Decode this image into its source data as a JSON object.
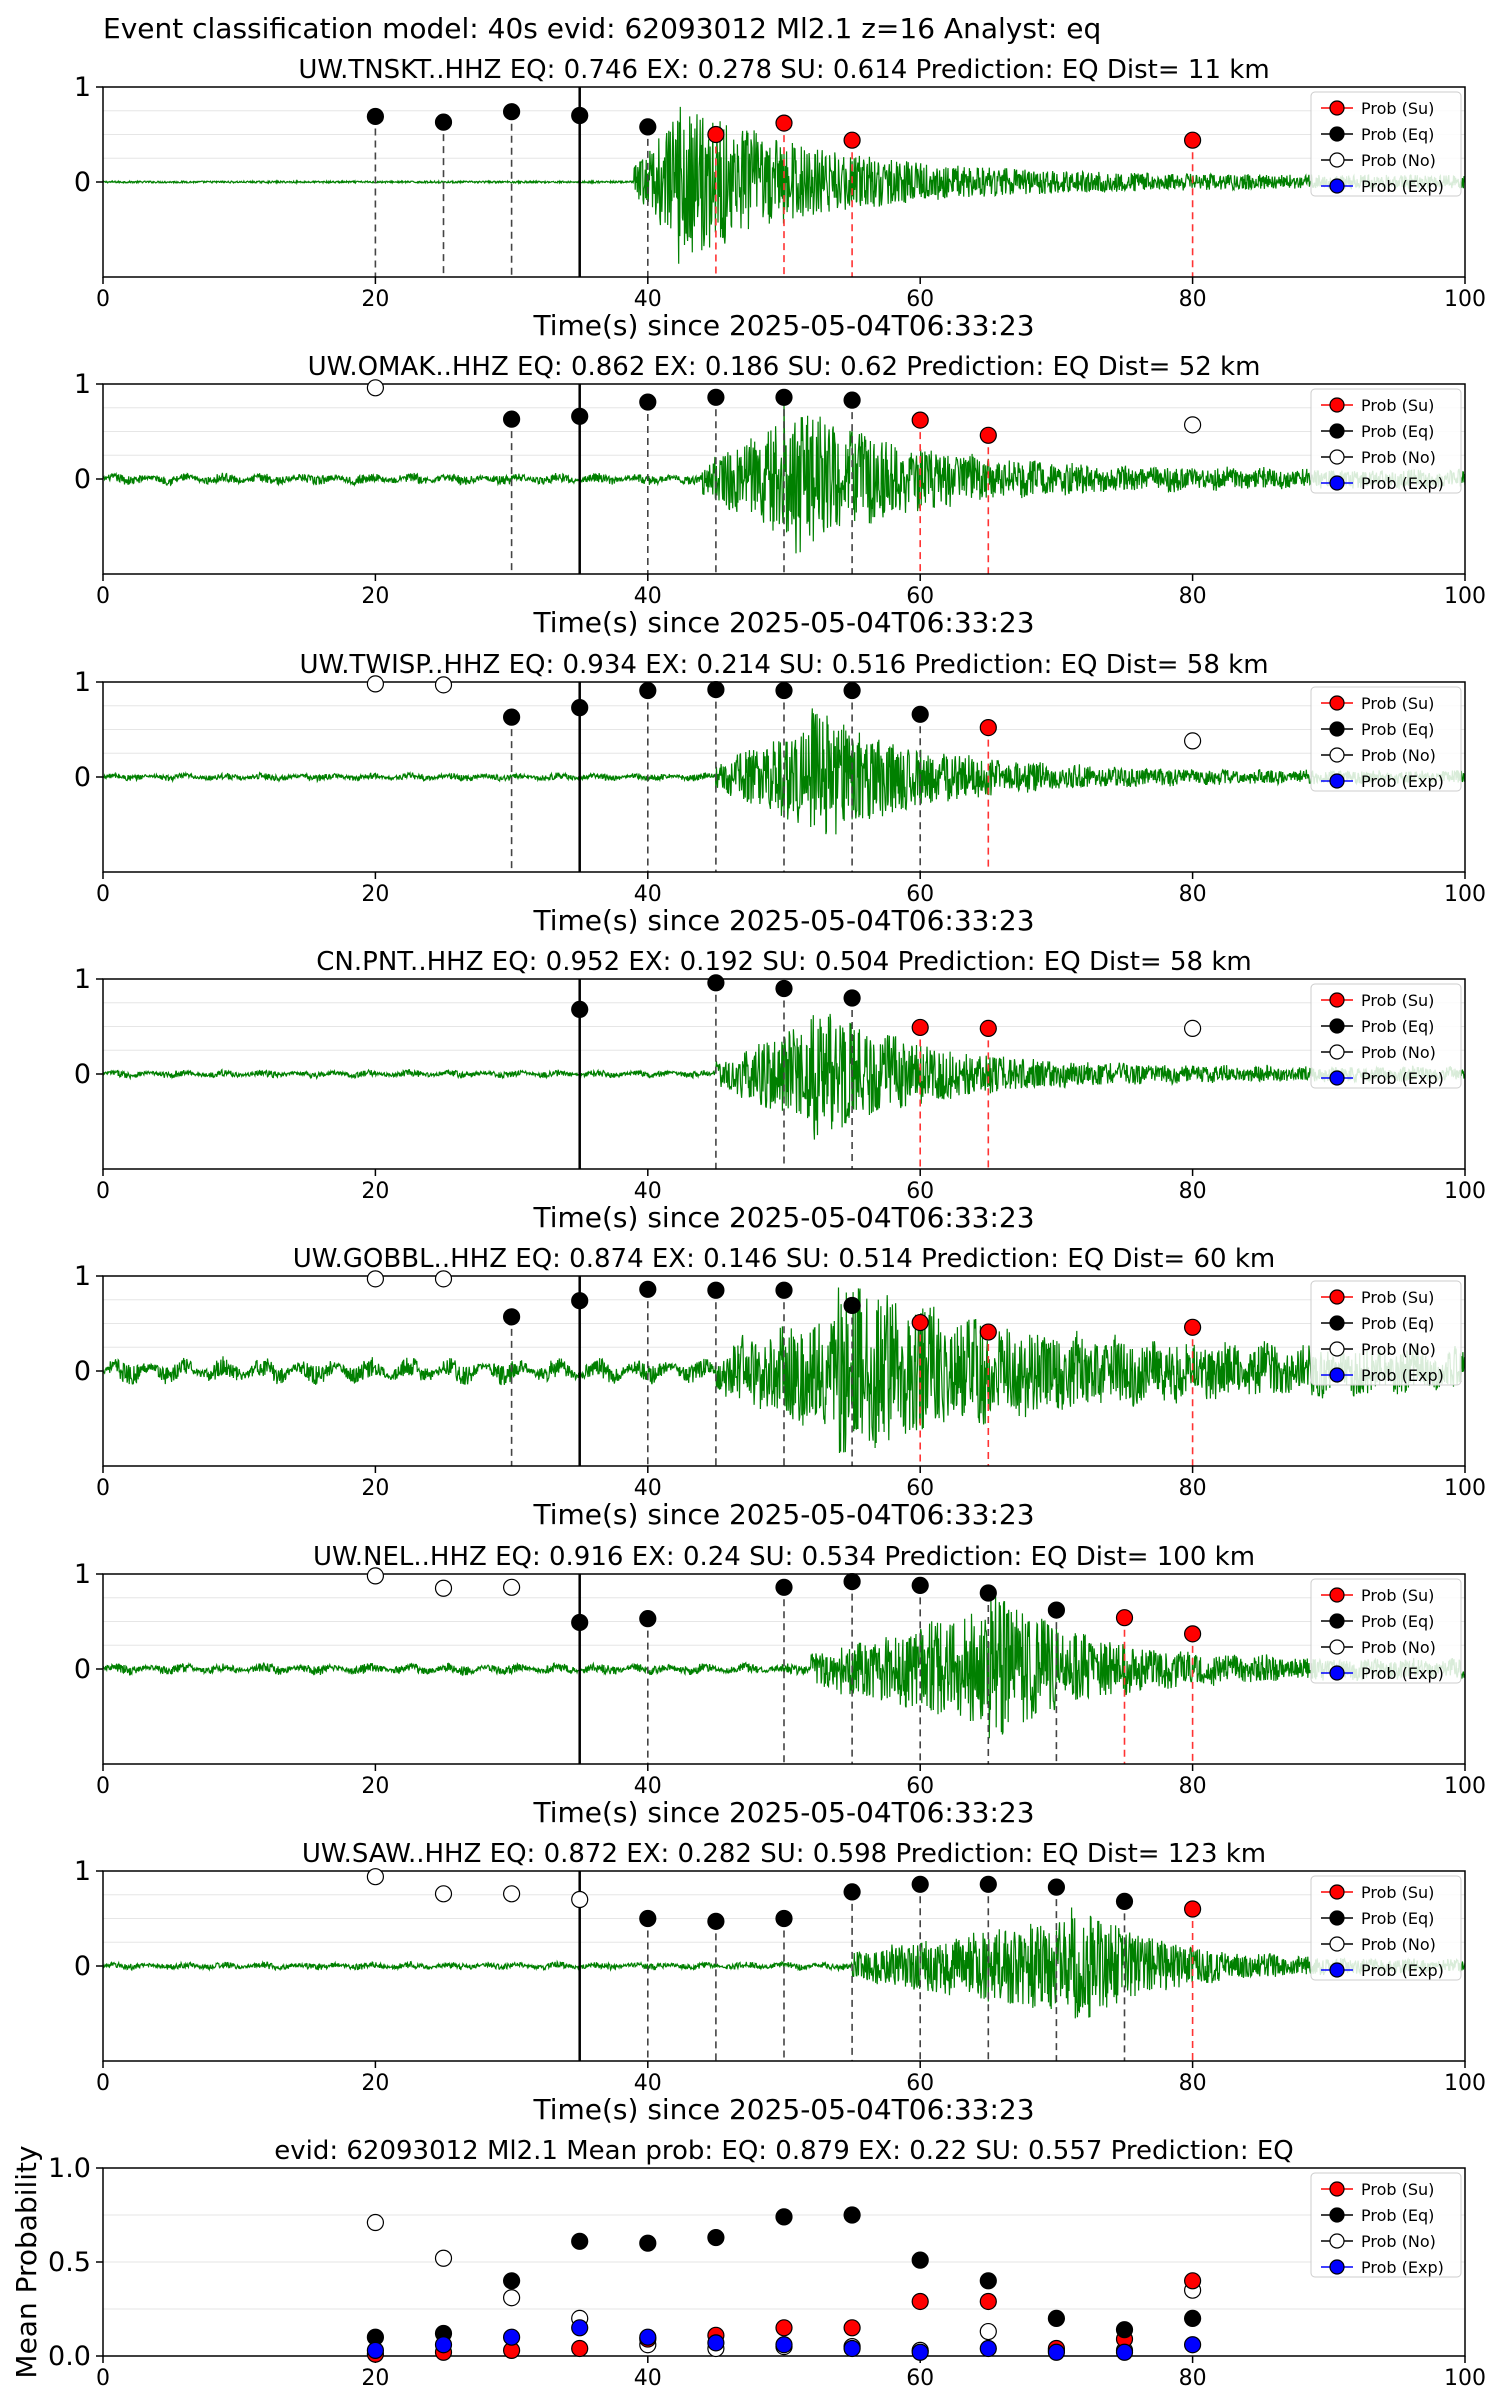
{
  "figure": {
    "suptitle": "Event classification model: 40s evid: 62093012 Ml2.1 z=16 Analyst: eq"
  },
  "legend_labels": [
    "Prob (Su)",
    "Prob (Eq)",
    "Prob (No)",
    "Prob (Exp)"
  ],
  "colors": {
    "su": "#ff0000",
    "eq": "#000000",
    "no": "#ffffff",
    "exp": "#0000ff",
    "waveform": "#008000",
    "eq_line": "#444444",
    "su_line": "#ff3333"
  },
  "chart_data": [
    {
      "type": "scatter",
      "title": "UW.TNSKT..HHZ   EQ: 0.746  EX: 0.278  SU: 0.614   Prediction: EQ    Dist= 11 km",
      "xlabel": "Time(s) since 2025-05-04T06:33:23",
      "ylabel": "",
      "xlim": [
        0,
        100
      ],
      "ylim": [
        -1,
        1
      ],
      "xticks": [
        0,
        20,
        40,
        60,
        80,
        100
      ],
      "yticks": [
        "1",
        "0"
      ],
      "arrival": 35,
      "waveform": {
        "onset": 39,
        "peak": 42,
        "amp": 1.0,
        "noise": 0.01,
        "swell": 0.0,
        "decay": 10,
        "tail": 0.06
      },
      "series": [
        {
          "name": "Prob (Su)",
          "x": [
            45,
            50,
            55,
            80
          ],
          "y": [
            0.5,
            0.62,
            0.44,
            0.44
          ]
        },
        {
          "name": "Prob (Eq)",
          "x": [
            20,
            25,
            30,
            35,
            40
          ],
          "y": [
            0.69,
            0.63,
            0.74,
            0.7,
            0.58
          ]
        },
        {
          "name": "Prob (No)",
          "x": [],
          "y": []
        },
        {
          "name": "Prob (Exp)",
          "x": [],
          "y": []
        }
      ]
    },
    {
      "type": "scatter",
      "title": "UW.OMAK..HHZ   EQ: 0.862  EX: 0.186  SU: 0.62   Prediction: EQ    Dist= 52 km",
      "xlabel": "Time(s) since 2025-05-04T06:33:23",
      "ylabel": "",
      "xlim": [
        0,
        100
      ],
      "ylim": [
        -1,
        1
      ],
      "xticks": [
        0,
        20,
        40,
        60,
        80,
        100
      ],
      "yticks": [
        "1",
        "0"
      ],
      "arrival": 35,
      "waveform": {
        "onset": 44,
        "peak": 50,
        "amp": 0.9,
        "noise": 0.02,
        "swell": 0.03,
        "decay": 9,
        "tail": 0.05
      },
      "series": [
        {
          "name": "Prob (Su)",
          "x": [
            60,
            65
          ],
          "y": [
            0.62,
            0.46
          ]
        },
        {
          "name": "Prob (Eq)",
          "x": [
            30,
            35,
            40,
            45,
            50,
            55
          ],
          "y": [
            0.63,
            0.66,
            0.81,
            0.86,
            0.86,
            0.83
          ]
        },
        {
          "name": "Prob (No)",
          "x": [
            20,
            80
          ],
          "y": [
            0.96,
            0.57
          ]
        },
        {
          "name": "Prob (Exp)",
          "x": [],
          "y": []
        }
      ]
    },
    {
      "type": "scatter",
      "title": "UW.TWISP..HHZ   EQ: 0.934  EX: 0.214  SU: 0.516   Prediction: EQ    Dist= 58 km",
      "xlabel": "Time(s) since 2025-05-04T06:33:23",
      "ylabel": "",
      "xlim": [
        0,
        100
      ],
      "ylim": [
        -1,
        1
      ],
      "xticks": [
        0,
        20,
        40,
        60,
        80,
        100
      ],
      "yticks": [
        "1",
        "0"
      ],
      "arrival": 35,
      "waveform": {
        "onset": 45,
        "peak": 52,
        "amp": 0.8,
        "noise": 0.015,
        "swell": 0.02,
        "decay": 8,
        "tail": 0.04
      },
      "series": [
        {
          "name": "Prob (Su)",
          "x": [
            65
          ],
          "y": [
            0.52
          ]
        },
        {
          "name": "Prob (Eq)",
          "x": [
            30,
            35,
            40,
            45,
            50,
            55,
            60
          ],
          "y": [
            0.63,
            0.73,
            0.91,
            0.92,
            0.91,
            0.91,
            0.66
          ]
        },
        {
          "name": "Prob (No)",
          "x": [
            20,
            25,
            80
          ],
          "y": [
            0.98,
            0.97,
            0.38
          ]
        },
        {
          "name": "Prob (Exp)",
          "x": [],
          "y": []
        }
      ]
    },
    {
      "type": "scatter",
      "title": "CN.PNT..HHZ   EQ: 0.952  EX: 0.192  SU: 0.504   Prediction: EQ    Dist= 58 km",
      "xlabel": "Time(s) since 2025-05-04T06:33:23",
      "ylabel": "",
      "xlim": [
        0,
        100
      ],
      "ylim": [
        -1,
        1
      ],
      "xticks": [
        0,
        20,
        40,
        60,
        80,
        100
      ],
      "yticks": [
        "1",
        "0"
      ],
      "arrival": 35,
      "waveform": {
        "onset": 45,
        "peak": 52,
        "amp": 0.8,
        "noise": 0.015,
        "swell": 0.02,
        "decay": 8,
        "tail": 0.05
      },
      "series": [
        {
          "name": "Prob (Su)",
          "x": [
            60,
            65
          ],
          "y": [
            0.49,
            0.48
          ]
        },
        {
          "name": "Prob (Eq)",
          "x": [
            35,
            45,
            50,
            55
          ],
          "y": [
            0.68,
            0.96,
            0.9,
            0.8
          ]
        },
        {
          "name": "Prob (No)",
          "x": [
            80
          ],
          "y": [
            0.48
          ]
        },
        {
          "name": "Prob (Exp)",
          "x": [],
          "y": []
        }
      ]
    },
    {
      "type": "scatter",
      "title": "UW.GOBBL..HHZ   EQ: 0.874  EX: 0.146  SU: 0.514   Prediction: EQ    Dist= 60 km",
      "xlabel": "Time(s) since 2025-05-04T06:33:23",
      "ylabel": "",
      "xlim": [
        0,
        100
      ],
      "ylim": [
        -1,
        1
      ],
      "xticks": [
        0,
        20,
        40,
        60,
        80,
        100
      ],
      "yticks": [
        "1",
        "0"
      ],
      "arrival": 35,
      "waveform": {
        "onset": 45,
        "peak": 54,
        "amp": 0.9,
        "noise": 0.03,
        "swell": 0.08,
        "decay": 12,
        "tail": 0.12
      },
      "series": [
        {
          "name": "Prob (Su)",
          "x": [
            60,
            65,
            80
          ],
          "y": [
            0.51,
            0.41,
            0.46
          ]
        },
        {
          "name": "Prob (Eq)",
          "x": [
            30,
            35,
            40,
            45,
            50,
            55
          ],
          "y": [
            0.57,
            0.74,
            0.86,
            0.85,
            0.85,
            0.69
          ]
        },
        {
          "name": "Prob (No)",
          "x": [
            20,
            25
          ],
          "y": [
            0.97,
            0.97
          ]
        },
        {
          "name": "Prob (Exp)",
          "x": [],
          "y": []
        }
      ]
    },
    {
      "type": "scatter",
      "title": "UW.NEL..HHZ   EQ: 0.916  EX: 0.24  SU: 0.534   Prediction: EQ    Dist= 100 km",
      "xlabel": "Time(s) since 2025-05-04T06:33:23",
      "ylabel": "",
      "xlim": [
        0,
        100
      ],
      "ylim": [
        -1,
        1
      ],
      "xticks": [
        0,
        20,
        40,
        60,
        80,
        100
      ],
      "yticks": [
        "1",
        "0"
      ],
      "arrival": 35,
      "waveform": {
        "onset": 52,
        "peak": 65,
        "amp": 0.9,
        "noise": 0.02,
        "swell": 0.03,
        "decay": 7,
        "tail": 0.05
      },
      "series": [
        {
          "name": "Prob (Su)",
          "x": [
            75,
            80
          ],
          "y": [
            0.54,
            0.37
          ]
        },
        {
          "name": "Prob (Eq)",
          "x": [
            35,
            40,
            50,
            55,
            60,
            65,
            70
          ],
          "y": [
            0.49,
            0.53,
            0.86,
            0.92,
            0.88,
            0.8,
            0.62
          ]
        },
        {
          "name": "Prob (No)",
          "x": [
            20,
            25,
            30
          ],
          "y": [
            0.98,
            0.85,
            0.86
          ]
        },
        {
          "name": "Prob (Exp)",
          "x": [],
          "y": []
        }
      ]
    },
    {
      "type": "scatter",
      "title": "UW.SAW..HHZ   EQ: 0.872  EX: 0.282  SU: 0.598   Prediction: EQ    Dist= 123 km",
      "xlabel": "Time(s) since 2025-05-04T06:33:23",
      "ylabel": "",
      "xlim": [
        0,
        100
      ],
      "ylim": [
        -1,
        1
      ],
      "xticks": [
        0,
        20,
        40,
        60,
        80,
        100
      ],
      "yticks": [
        "1",
        "0"
      ],
      "arrival": 35,
      "waveform": {
        "onset": 55,
        "peak": 71,
        "amp": 0.75,
        "noise": 0.015,
        "swell": 0.02,
        "decay": 6,
        "tail": 0.04
      },
      "series": [
        {
          "name": "Prob (Su)",
          "x": [
            80
          ],
          "y": [
            0.6
          ]
        },
        {
          "name": "Prob (Eq)",
          "x": [
            40,
            45,
            50,
            55,
            60,
            65,
            70,
            75
          ],
          "y": [
            0.5,
            0.47,
            0.5,
            0.78,
            0.86,
            0.86,
            0.83,
            0.68
          ]
        },
        {
          "name": "Prob (No)",
          "x": [
            20,
            25,
            30,
            35
          ],
          "y": [
            0.94,
            0.76,
            0.76,
            0.7
          ]
        },
        {
          "name": "Prob (Exp)",
          "x": [],
          "y": []
        }
      ]
    },
    {
      "type": "scatter",
      "title": "evid: 62093012  Ml2.1   Mean prob:   EQ: 0.879  EX: 0.22  SU: 0.557   Prediction: EQ",
      "xlabel": "",
      "ylabel": "Mean Probability",
      "xlim": [
        0,
        100
      ],
      "ylim": [
        0,
        1
      ],
      "xticks": [
        0,
        20,
        40,
        60,
        80,
        100
      ],
      "yticks": [
        "1.0",
        "0.5",
        "0.0"
      ],
      "series": [
        {
          "name": "Prob (Su)",
          "x": [
            20,
            25,
            30,
            35,
            40,
            45,
            50,
            55,
            60,
            65,
            70,
            75,
            80
          ],
          "y": [
            0.01,
            0.02,
            0.03,
            0.04,
            0.09,
            0.11,
            0.15,
            0.15,
            0.29,
            0.29,
            0.04,
            0.09,
            0.4
          ]
        },
        {
          "name": "Prob (Eq)",
          "x": [
            20,
            25,
            30,
            35,
            40,
            45,
            50,
            55,
            60,
            65,
            70,
            75,
            80
          ],
          "y": [
            0.1,
            0.12,
            0.4,
            0.61,
            0.6,
            0.63,
            0.74,
            0.75,
            0.51,
            0.4,
            0.2,
            0.14,
            0.2
          ]
        },
        {
          "name": "Prob (No)",
          "x": [
            20,
            25,
            30,
            35,
            40,
            45,
            50,
            55,
            60,
            65,
            70,
            75,
            80
          ],
          "y": [
            0.71,
            0.52,
            0.31,
            0.2,
            0.06,
            0.04,
            0.05,
            0.05,
            0.03,
            0.13,
            0.03,
            0.03,
            0.35
          ]
        },
        {
          "name": "Prob (Exp)",
          "x": [
            20,
            25,
            30,
            35,
            40,
            45,
            50,
            55,
            60,
            65,
            70,
            75,
            80
          ],
          "y": [
            0.03,
            0.06,
            0.1,
            0.15,
            0.1,
            0.07,
            0.06,
            0.04,
            0.02,
            0.04,
            0.02,
            0.02,
            0.06
          ]
        }
      ]
    }
  ]
}
